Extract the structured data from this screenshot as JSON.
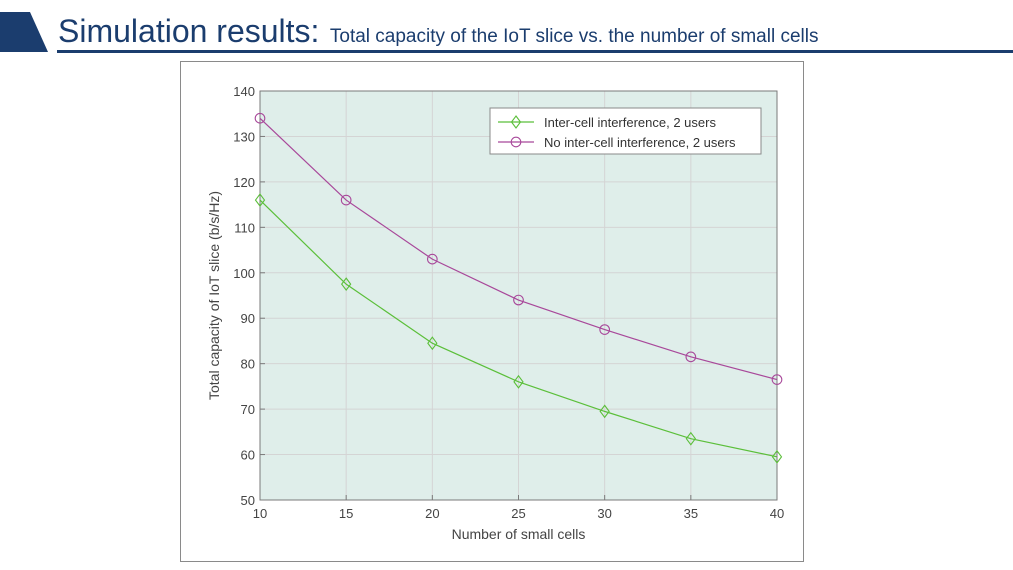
{
  "slide": {
    "title_main": "Simulation results:",
    "title_sub": "Total capacity of the IoT slice vs. the number of small cells"
  },
  "colors": {
    "header": "#1b3d6e",
    "plot_bg": "#dfeeea",
    "series_1": "#5bbf3a",
    "series_2": "#a8489a"
  },
  "chart_data": {
    "type": "line",
    "title": "",
    "xlabel": "Number of small cells",
    "ylabel": "Total capacity of IoT slice (b/s/Hz)",
    "x": [
      10,
      15,
      20,
      25,
      30,
      35,
      40
    ],
    "xlim": [
      10,
      40
    ],
    "ylim": [
      50,
      140
    ],
    "xticks": [
      10,
      15,
      20,
      25,
      30,
      35,
      40
    ],
    "yticks": [
      50,
      60,
      70,
      80,
      90,
      100,
      110,
      120,
      130,
      140
    ],
    "grid": true,
    "legend_position": "top-right",
    "series": [
      {
        "name": "Inter-cell interference, 2 users",
        "marker": "diamond",
        "values": [
          116,
          97.5,
          84.5,
          76,
          69.5,
          63.5,
          59.5
        ]
      },
      {
        "name": "No inter-cell interference, 2 users",
        "marker": "circle",
        "values": [
          134,
          116,
          103,
          94,
          87.5,
          81.5,
          76.5
        ]
      }
    ]
  }
}
